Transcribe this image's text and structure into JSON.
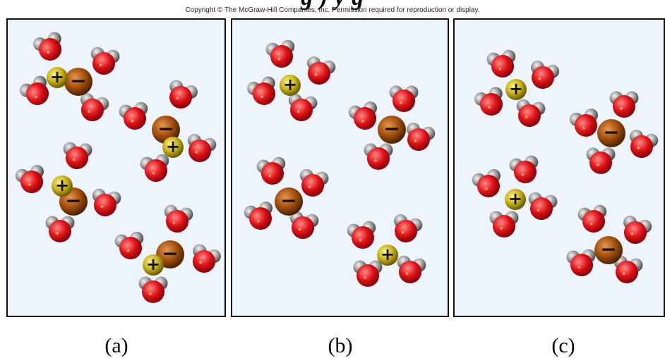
{
  "header": {
    "title_partial": "g                                   )               y  g",
    "copyright": "Copyright © The McGraw-Hill Companies, Inc. Permission required for reproduction or display."
  },
  "panels": [
    {
      "label": "(a)"
    },
    {
      "label": "(b)"
    },
    {
      "label": "(c)"
    }
  ],
  "ion_signs": {
    "cation": "+",
    "anion": "−"
  },
  "colors": {
    "panel_bg": "#eef4fb",
    "oxygen": "#e0131a",
    "hydrogen": "#8e8e8e",
    "cation": "#c8b21c",
    "anion": "#a4500e"
  }
}
